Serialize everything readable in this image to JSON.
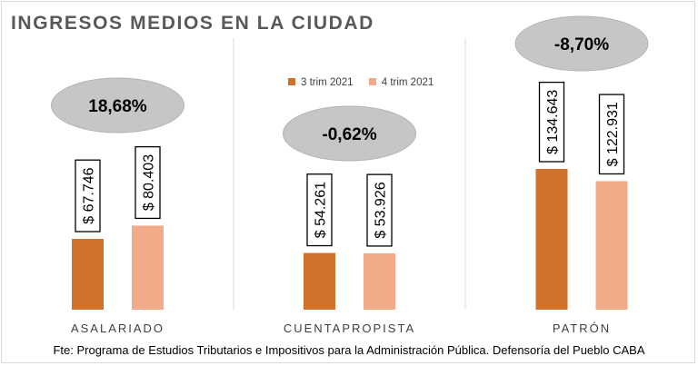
{
  "title": "INGRESOS  MEDIOS  EN  LA  CIUDAD",
  "source": "Fte: Programa de Estudios Tributarios e Impositivos para la Administración Pública. Defensoría del Pueblo CABA",
  "colors": {
    "series_1": "#d2712b",
    "series_2": "#f2aa89",
    "bubble": "#c6c6c6",
    "divider": "#d9d9d9",
    "text": "#000000",
    "category_text": "#404040"
  },
  "chart_data": {
    "type": "bar",
    "title": "INGRESOS  MEDIOS  EN  LA  CIUDAD",
    "categories": [
      "ASALARIADO",
      "CUENTAPROPISTA",
      "PATRÓN"
    ],
    "series": [
      {
        "name": "3  trim 2021",
        "values": [
          67746,
          54261,
          134643
        ],
        "labels": [
          "$ 67.746",
          "$ 54.261",
          "$ 134.643"
        ]
      },
      {
        "name": "4 trim 2021",
        "values": [
          80403,
          53926,
          122931
        ],
        "labels": [
          "$ 80.403",
          "$ 53.926",
          "$ 122.931"
        ]
      }
    ],
    "annotations": [
      "18,68%",
      "-0,62%",
      "-8,70%"
    ],
    "legend_position": "top-center",
    "grid": false
  }
}
